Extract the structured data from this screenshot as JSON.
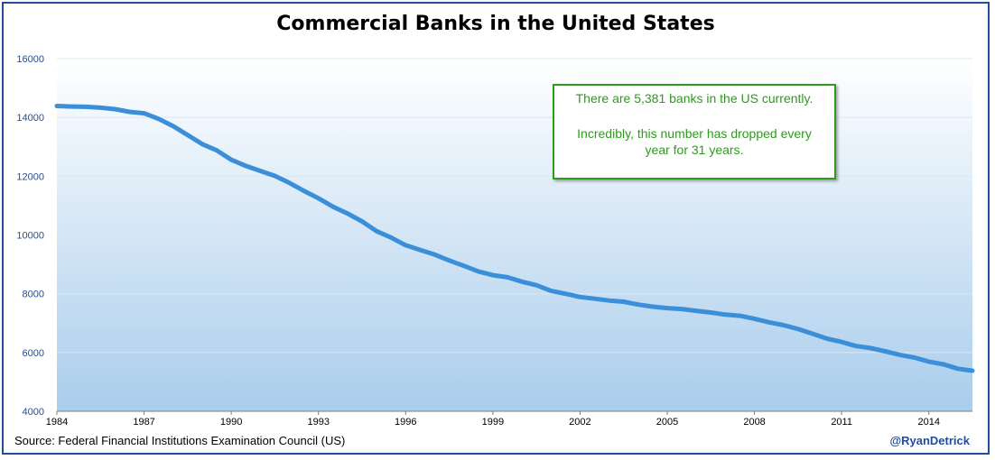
{
  "colors": {
    "line": "#3a8fd8",
    "grid": "#dbe6f2",
    "annotation": "#2e9a1e",
    "border": "#1f4e9c"
  },
  "annotation": {
    "line1": "There are 5,381 banks in the US currently.",
    "line2": "Incredibly, this number has dropped every year for 31 years."
  },
  "source": "Source:  Federal Financial Institutions Examination Council (US)",
  "handle": "@RyanDetrick",
  "chart_data": {
    "type": "line",
    "title": "Commercial Banks in the United States",
    "xlabel": "",
    "ylabel": "",
    "xlim": [
      1984,
      2015.5
    ],
    "ylim": [
      4000,
      16000
    ],
    "yticks": [
      4000,
      6000,
      8000,
      10000,
      12000,
      14000,
      16000
    ],
    "xticks": [
      1984,
      1987,
      1990,
      1993,
      1996,
      1999,
      2002,
      2005,
      2008,
      2011,
      2014
    ],
    "grid": true,
    "series": [
      {
        "name": "Commercial Banks",
        "x": [
          1984.0,
          1984.5,
          1985.0,
          1985.5,
          1986.0,
          1986.5,
          1987.0,
          1987.5,
          1988.0,
          1988.5,
          1989.0,
          1989.5,
          1990.0,
          1990.5,
          1991.0,
          1991.5,
          1992.0,
          1992.5,
          1993.0,
          1993.5,
          1994.0,
          1994.5,
          1995.0,
          1995.5,
          1996.0,
          1996.5,
          1997.0,
          1997.5,
          1998.0,
          1998.5,
          1999.0,
          1999.5,
          2000.0,
          2000.5,
          2001.0,
          2001.5,
          2002.0,
          2002.5,
          2003.0,
          2003.5,
          2004.0,
          2004.5,
          2005.0,
          2005.5,
          2006.0,
          2006.5,
          2007.0,
          2007.5,
          2008.0,
          2008.5,
          2009.0,
          2009.5,
          2010.0,
          2010.5,
          2011.0,
          2011.5,
          2012.0,
          2012.5,
          2013.0,
          2013.5,
          2014.0,
          2014.5,
          2015.0,
          2015.5
        ],
        "values": [
          14390,
          14370,
          14360,
          14330,
          14280,
          14190,
          14140,
          13950,
          13700,
          13400,
          13090,
          12880,
          12560,
          12350,
          12180,
          12010,
          11770,
          11500,
          11250,
          10960,
          10730,
          10460,
          10130,
          9910,
          9650,
          9490,
          9330,
          9130,
          8950,
          8760,
          8630,
          8560,
          8410,
          8290,
          8100,
          8000,
          7890,
          7830,
          7770,
          7730,
          7630,
          7560,
          7510,
          7480,
          7420,
          7360,
          7290,
          7250,
          7150,
          7030,
          6930,
          6800,
          6640,
          6470,
          6360,
          6220,
          6150,
          6040,
          5920,
          5830,
          5690,
          5600,
          5450,
          5381
        ]
      }
    ]
  }
}
